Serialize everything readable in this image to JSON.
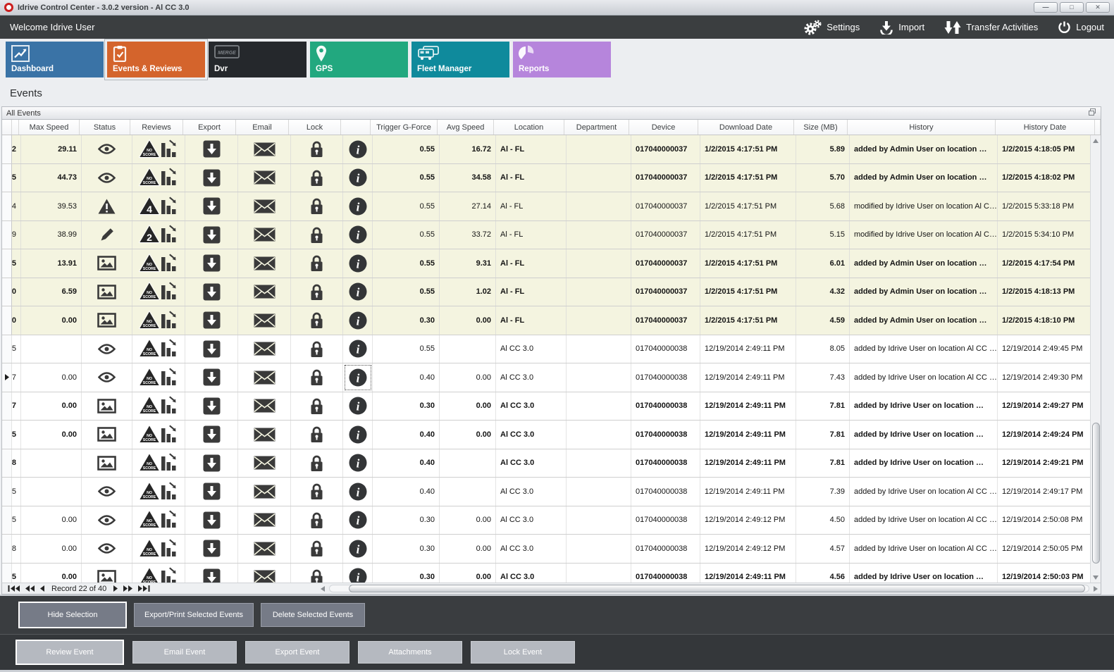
{
  "window": {
    "title": "Idrive Control Center - 3.0.2 version - Al CC 3.0",
    "controls": [
      {
        "id": "minimize",
        "glyph": "—"
      },
      {
        "id": "maximize",
        "glyph": "□"
      },
      {
        "id": "close",
        "glyph": "✕"
      }
    ]
  },
  "topbar": {
    "welcome": "Welcome Idrive User",
    "actions": [
      {
        "id": "settings",
        "label": "Settings",
        "icon": "gears-icon"
      },
      {
        "id": "import",
        "label": "Import",
        "icon": "import-icon"
      },
      {
        "id": "transfer-activities",
        "label": "Transfer Activities",
        "icon": "transfer-icon"
      },
      {
        "id": "logout",
        "label": "Logout",
        "icon": "power-icon"
      }
    ]
  },
  "tabs": [
    {
      "id": "dashboard",
      "label": "Dashboard",
      "color": "#3a73a6",
      "icon": "line-chart-icon",
      "selected": false
    },
    {
      "id": "events-reviews",
      "label": "Events & Reviews",
      "color": "#d4642c",
      "icon": "clipboard-check-icon",
      "selected": true
    },
    {
      "id": "dvr",
      "label": "Dvr",
      "color": "#25282c",
      "icon": "dvr-icon",
      "selected": false
    },
    {
      "id": "gps",
      "label": "GPS",
      "color": "#22a87f",
      "icon": "map-pin-icon",
      "selected": false
    },
    {
      "id": "fleet-manager",
      "label": "Fleet Manager",
      "color": "#0f8a9c",
      "icon": "vehicles-icon",
      "selected": false
    },
    {
      "id": "reports",
      "label": "Reports",
      "color": "#b685dc",
      "icon": "pie-chart-icon",
      "selected": false
    }
  ],
  "page_title": "Events",
  "panel_title": "All Events",
  "table": {
    "columns": {
      "ind": "",
      "edge": "",
      "max_speed": "Max Speed",
      "status": "Status",
      "reviews": "Reviews",
      "export": "Export",
      "email": "Email",
      "lock": "Lock",
      "info": "",
      "trigger": "Trigger G-Force",
      "avg": "Avg Speed",
      "location": "Location",
      "department": "Department",
      "device": "Device",
      "download": "Download Date",
      "size": "Size (MB)",
      "history": "History",
      "history_date": "History Date"
    },
    "rows": [
      {
        "edge": "2",
        "max_speed": "29.11",
        "status": "eye",
        "score": "NO SCORE",
        "trigger": "0.55",
        "avg": "16.72",
        "location": "Al - FL",
        "department": "",
        "device": "017040000037",
        "download": "1/2/2015 4:17:51 PM",
        "size": "5.89",
        "history": "added by Admin User on location …",
        "history_date": "1/2/2015 4:18:05 PM",
        "bold": true,
        "cream": true,
        "selected": false
      },
      {
        "edge": "5",
        "max_speed": "44.73",
        "status": "eye",
        "score": "NO SCORE",
        "trigger": "0.55",
        "avg": "34.58",
        "location": "Al - FL",
        "department": "",
        "device": "017040000037",
        "download": "1/2/2015 4:17:51 PM",
        "size": "5.70",
        "history": "added by Admin User on location …",
        "history_date": "1/2/2015 4:18:02 PM",
        "bold": true,
        "cream": true,
        "selected": false
      },
      {
        "edge": "4",
        "max_speed": "39.53",
        "status": "warning",
        "score": "4",
        "trigger": "0.55",
        "avg": "27.14",
        "location": "Al - FL",
        "department": "",
        "device": "017040000037",
        "download": "1/2/2015 4:17:51 PM",
        "size": "5.68",
        "history": "modified by Idrive User on location Al C…",
        "history_date": "1/2/2015 5:33:18 PM",
        "bold": false,
        "cream": true,
        "selected": false
      },
      {
        "edge": "9",
        "max_speed": "38.99",
        "status": "pencil",
        "score": "2",
        "trigger": "0.55",
        "avg": "33.72",
        "location": "Al - FL",
        "department": "",
        "device": "017040000037",
        "download": "1/2/2015 4:17:51 PM",
        "size": "5.15",
        "history": "modified by Idrive User on location Al C…",
        "history_date": "1/2/2015 5:34:10 PM",
        "bold": false,
        "cream": true,
        "selected": false
      },
      {
        "edge": "5",
        "max_speed": "13.91",
        "status": "image",
        "score": "NO SCORE",
        "trigger": "0.55",
        "avg": "9.31",
        "location": "Al - FL",
        "department": "",
        "device": "017040000037",
        "download": "1/2/2015 4:17:51 PM",
        "size": "6.01",
        "history": "added by Admin User on location …",
        "history_date": "1/2/2015 4:17:54 PM",
        "bold": true,
        "cream": true,
        "selected": false
      },
      {
        "edge": "0",
        "max_speed": "6.59",
        "status": "image",
        "score": "NO SCORE",
        "trigger": "0.55",
        "avg": "1.02",
        "location": "Al - FL",
        "department": "",
        "device": "017040000037",
        "download": "1/2/2015 4:17:51 PM",
        "size": "4.32",
        "history": "added by Admin User on location …",
        "history_date": "1/2/2015 4:18:13 PM",
        "bold": true,
        "cream": true,
        "selected": false
      },
      {
        "edge": "0",
        "max_speed": "0.00",
        "status": "image",
        "score": "NO SCORE",
        "trigger": "0.30",
        "avg": "0.00",
        "location": "Al - FL",
        "department": "",
        "device": "017040000037",
        "download": "1/2/2015 4:17:51 PM",
        "size": "4.59",
        "history": "added by Admin User on location …",
        "history_date": "1/2/2015 4:18:10 PM",
        "bold": true,
        "cream": true,
        "selected": false
      },
      {
        "edge": "5",
        "max_speed": "",
        "status": "eye",
        "score": "NO SCORE",
        "trigger": "0.55",
        "avg": "",
        "location": "Al CC 3.0",
        "department": "",
        "device": "017040000038",
        "download": "12/19/2014 2:49:11 PM",
        "size": "8.05",
        "history": "added by Idrive User on location Al CC …",
        "history_date": "12/19/2014 2:49:45 PM",
        "bold": false,
        "cream": false,
        "selected": false
      },
      {
        "edge": "7",
        "max_speed": "0.00",
        "status": "eye",
        "score": "NO SCORE",
        "trigger": "0.40",
        "avg": "0.00",
        "location": "Al CC 3.0",
        "department": "",
        "device": "017040000038",
        "download": "12/19/2014 2:49:11 PM",
        "size": "7.43",
        "history": "added by Idrive User on location Al CC …",
        "history_date": "12/19/2014 2:49:30 PM",
        "bold": false,
        "cream": false,
        "selected": true
      },
      {
        "edge": "7",
        "max_speed": "0.00",
        "status": "image",
        "score": "NO SCORE",
        "trigger": "0.30",
        "avg": "0.00",
        "location": "Al CC 3.0",
        "department": "",
        "device": "017040000038",
        "download": "12/19/2014 2:49:11 PM",
        "size": "7.81",
        "history": "added by Idrive User on location …",
        "history_date": "12/19/2014 2:49:27 PM",
        "bold": true,
        "cream": false,
        "selected": false
      },
      {
        "edge": "5",
        "max_speed": "0.00",
        "status": "image",
        "score": "NO SCORE",
        "trigger": "0.40",
        "avg": "0.00",
        "location": "Al CC 3.0",
        "department": "",
        "device": "017040000038",
        "download": "12/19/2014 2:49:11 PM",
        "size": "7.81",
        "history": "added by Idrive User on location …",
        "history_date": "12/19/2014 2:49:24 PM",
        "bold": true,
        "cream": false,
        "selected": false
      },
      {
        "edge": "8",
        "max_speed": "",
        "status": "image",
        "score": "NO SCORE",
        "trigger": "0.40",
        "avg": "",
        "location": "Al CC 3.0",
        "department": "",
        "device": "017040000038",
        "download": "12/19/2014 2:49:11 PM",
        "size": "7.81",
        "history": "added by Idrive User on location …",
        "history_date": "12/19/2014 2:49:21 PM",
        "bold": true,
        "cream": false,
        "selected": false
      },
      {
        "edge": "5",
        "max_speed": "",
        "status": "eye",
        "score": "NO SCORE",
        "trigger": "0.40",
        "avg": "",
        "location": "Al CC 3.0",
        "department": "",
        "device": "017040000038",
        "download": "12/19/2014 2:49:11 PM",
        "size": "7.39",
        "history": "added by Idrive User on location Al CC …",
        "history_date": "12/19/2014 2:49:17 PM",
        "bold": false,
        "cream": false,
        "selected": false
      },
      {
        "edge": "5",
        "max_speed": "0.00",
        "status": "eye",
        "score": "NO SCORE",
        "trigger": "0.30",
        "avg": "0.00",
        "location": "Al CC 3.0",
        "department": "",
        "device": "017040000038",
        "download": "12/19/2014 2:49:12 PM",
        "size": "4.50",
        "history": "added by Idrive User on location Al CC …",
        "history_date": "12/19/2014 2:50:08 PM",
        "bold": false,
        "cream": false,
        "selected": false
      },
      {
        "edge": "8",
        "max_speed": "0.00",
        "status": "eye",
        "score": "NO SCORE",
        "trigger": "0.30",
        "avg": "0.00",
        "location": "Al CC 3.0",
        "department": "",
        "device": "017040000038",
        "download": "12/19/2014 2:49:12 PM",
        "size": "4.57",
        "history": "added by Idrive User on location Al CC …",
        "history_date": "12/19/2014 2:50:05 PM",
        "bold": false,
        "cream": false,
        "selected": false
      },
      {
        "edge": "5",
        "max_speed": "0.00",
        "status": "image",
        "score": "NO SCORE",
        "trigger": "0.30",
        "avg": "0.00",
        "location": "Al CC 3.0",
        "department": "",
        "device": "017040000038",
        "download": "12/19/2014 2:49:11 PM",
        "size": "4.56",
        "history": "added by Idrive User on location …",
        "history_date": "12/19/2014 2:50:03 PM",
        "bold": true,
        "cream": false,
        "selected": false
      }
    ]
  },
  "pager": {
    "record_text": "Record 22 of 40"
  },
  "selection_bar": {
    "buttons": [
      {
        "id": "hide-selection",
        "label": "Hide Selection",
        "focused": true
      },
      {
        "id": "export-print-selected-events",
        "label": "Export/Print Selected Events",
        "focused": false
      },
      {
        "id": "delete-selected-events",
        "label": "Delete Selected  Events",
        "focused": false
      }
    ]
  },
  "event_bar": {
    "buttons": [
      {
        "id": "review-event",
        "label": "Review Event",
        "focused": true
      },
      {
        "id": "email-event",
        "label": "Email Event",
        "focused": false
      },
      {
        "id": "export-event",
        "label": "Export Event",
        "focused": false
      },
      {
        "id": "attachments",
        "label": "Attachments",
        "focused": false
      },
      {
        "id": "lock-event",
        "label": "Lock Event",
        "focused": false
      }
    ]
  },
  "colors": {
    "dark_bar": "#3b3e40",
    "cream_row": "#f4f4e0",
    "icon": "#3a3a3a",
    "selected_tab": "#d4642c",
    "button_dark": "#767b87",
    "button_light": "#b5b9c0"
  }
}
